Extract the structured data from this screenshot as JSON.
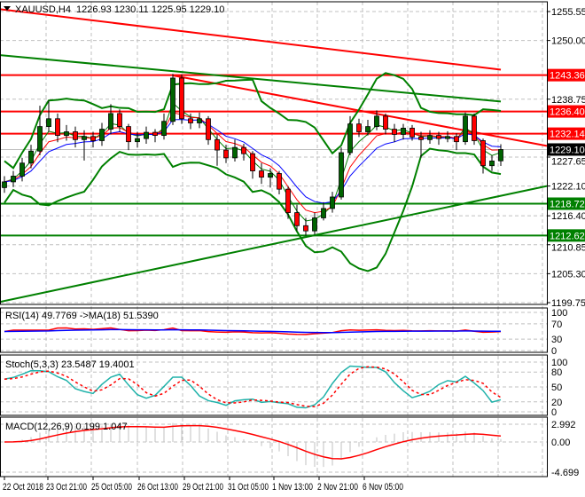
{
  "chart_data": {
    "type": "candlestick",
    "title": "XAUUSD,H4",
    "title_ohlc": "1226.93 1230.11 1225.95 1229.10",
    "current_price": "1229.10",
    "price_axis_ticks": [
      "1255.55",
      "1250.00",
      "1238.75",
      "1227.65",
      "1222.10",
      "1216.40",
      "1210.85",
      "1205.30",
      "1199.75"
    ],
    "price_range": [
      1199.75,
      1255.55
    ],
    "time_labels": [
      "22 Oct 2018",
      "23 Oct 21:00",
      "25 Oct 05:00",
      "26 Oct 13:00",
      "29 Oct 21:00",
      "31 Oct 05:00",
      "1 Nov 13:00",
      "2 Nov 21:00",
      "6 Nov 05:00"
    ],
    "grid": true,
    "colors": {
      "bull": "#006400",
      "bear": "#ff0000",
      "resistance": "#ff0000",
      "support": "#008000",
      "ma_fast": "#0000ff",
      "ma_mid": "#ff0000",
      "ma_slow": "#008000",
      "bands": "#008000"
    },
    "candles": {
      "o": [
        1221.8,
        1222.9,
        1224.0,
        1226.5,
        1228.8,
        1233.5,
        1235.0,
        1231.8,
        1232.5,
        1231.0,
        1231.6,
        1230.8,
        1233.0,
        1236.0,
        1233.5,
        1230.6,
        1231.2,
        1232.4,
        1231.8,
        1234.5,
        1242.8,
        1235.0,
        1234.2,
        1235.0,
        1231.0,
        1229.0,
        1227.5,
        1229.5,
        1228.3,
        1225.0,
        1223.8,
        1224.5,
        1221.5,
        1217.0,
        1214.5,
        1213.5,
        1216.0,
        1217.8,
        1220.0,
        1228.5,
        1234.0,
        1232.5,
        1233.5,
        1235.5,
        1233.0,
        1232.0,
        1233.2,
        1231.5,
        1231.0,
        1231.8,
        1231.2,
        1231.6,
        1230.6,
        1235.5,
        1230.8,
        1226.0,
        1226.93
      ],
      "h": [
        1224.0,
        1225.0,
        1227.5,
        1230.0,
        1237.5,
        1238.5,
        1236.0,
        1233.8,
        1233.5,
        1232.8,
        1232.5,
        1234.2,
        1237.8,
        1236.8,
        1234.0,
        1232.5,
        1233.5,
        1233.0,
        1236.0,
        1243.6,
        1243.5,
        1236.0,
        1236.2,
        1235.5,
        1232.0,
        1230.0,
        1231.0,
        1230.2,
        1228.8,
        1226.5,
        1225.5,
        1225.0,
        1222.0,
        1218.5,
        1216.0,
        1217.0,
        1219.0,
        1221.0,
        1229.5,
        1235.5,
        1235.0,
        1234.8,
        1236.6,
        1236.0,
        1234.0,
        1234.0,
        1233.8,
        1232.5,
        1232.8,
        1232.5,
        1232.6,
        1232.2,
        1236.2,
        1236.0,
        1231.2,
        1228.0,
        1230.11
      ],
      "l": [
        1220.8,
        1221.9,
        1223.0,
        1225.5,
        1228.0,
        1232.5,
        1230.5,
        1230.8,
        1229.5,
        1227.0,
        1229.5,
        1229.8,
        1232.0,
        1232.5,
        1229.0,
        1229.5,
        1230.2,
        1230.5,
        1231.0,
        1233.8,
        1234.0,
        1233.0,
        1233.2,
        1230.0,
        1226.0,
        1226.5,
        1226.8,
        1227.0,
        1223.5,
        1222.5,
        1221.8,
        1220.5,
        1215.8,
        1213.5,
        1212.6,
        1212.8,
        1215.5,
        1217.0,
        1219.5,
        1228.0,
        1231.5,
        1231.8,
        1232.8,
        1232.0,
        1230.5,
        1231.0,
        1230.8,
        1227.5,
        1230.2,
        1230.0,
        1230.5,
        1229.0,
        1230.0,
        1230.0,
        1224.5,
        1225.0,
        1225.95
      ],
      "c": [
        1222.9,
        1224.0,
        1226.5,
        1228.8,
        1233.5,
        1235.0,
        1231.8,
        1232.5,
        1231.0,
        1231.6,
        1230.8,
        1233.0,
        1236.0,
        1233.5,
        1230.6,
        1231.2,
        1232.4,
        1231.8,
        1234.5,
        1242.8,
        1235.0,
        1234.2,
        1235.0,
        1231.0,
        1229.0,
        1227.5,
        1229.5,
        1228.3,
        1225.0,
        1223.8,
        1224.5,
        1221.5,
        1217.0,
        1214.5,
        1213.5,
        1216.0,
        1217.8,
        1220.0,
        1228.5,
        1234.0,
        1232.5,
        1233.5,
        1235.5,
        1233.0,
        1232.0,
        1233.2,
        1231.5,
        1231.0,
        1231.8,
        1231.2,
        1231.6,
        1230.6,
        1235.5,
        1230.8,
        1226.0,
        1226.9,
        1229.1
      ]
    },
    "horizontal_levels": [
      {
        "price": 1243.36,
        "label": "1243.36",
        "kind": "resistance"
      },
      {
        "price": 1236.4,
        "label": "1236.40",
        "kind": "resistance"
      },
      {
        "price": 1232.14,
        "label": "1232.14",
        "kind": "resistance"
      },
      {
        "price": 1218.72,
        "label": "1218.72",
        "kind": "support"
      },
      {
        "price": 1212.62,
        "label": "1212.62",
        "kind": "support"
      }
    ],
    "trendlines": [
      {
        "kind": "resistance",
        "from": {
          "bar": 19,
          "price": 1243.3
        },
        "to": {
          "bar": "end",
          "price": 1229.8
        }
      },
      {
        "kind": "support",
        "from": {
          "bar": "start",
          "price": 1199.9
        },
        "to": {
          "bar": "end",
          "price": 1222.1
        }
      }
    ],
    "long_mas": [
      {
        "color": "#ff0000",
        "start": 1256.0,
        "end": 1244.4
      },
      {
        "color": "#008000",
        "start": 1247.2,
        "end": 1238.3
      }
    ],
    "rsi": {
      "label": "RSI(14) 49.7769 ->MA(18) 51.5390",
      "ticks": [
        "100",
        "70",
        "30",
        "0"
      ],
      "range": [
        0,
        100
      ]
    },
    "stoch": {
      "label": "Stoch(5,3,3) 23.5487 19.4001",
      "ticks": [
        "100",
        "80",
        "50",
        "20",
        "0"
      ],
      "range": [
        0,
        100
      ]
    },
    "macd": {
      "label": "MACD(12,26,9) 0.199 1.047",
      "ticks": [
        "2.992",
        "0.00",
        "-4.699"
      ],
      "range": [
        -4.699,
        2.992
      ]
    }
  }
}
